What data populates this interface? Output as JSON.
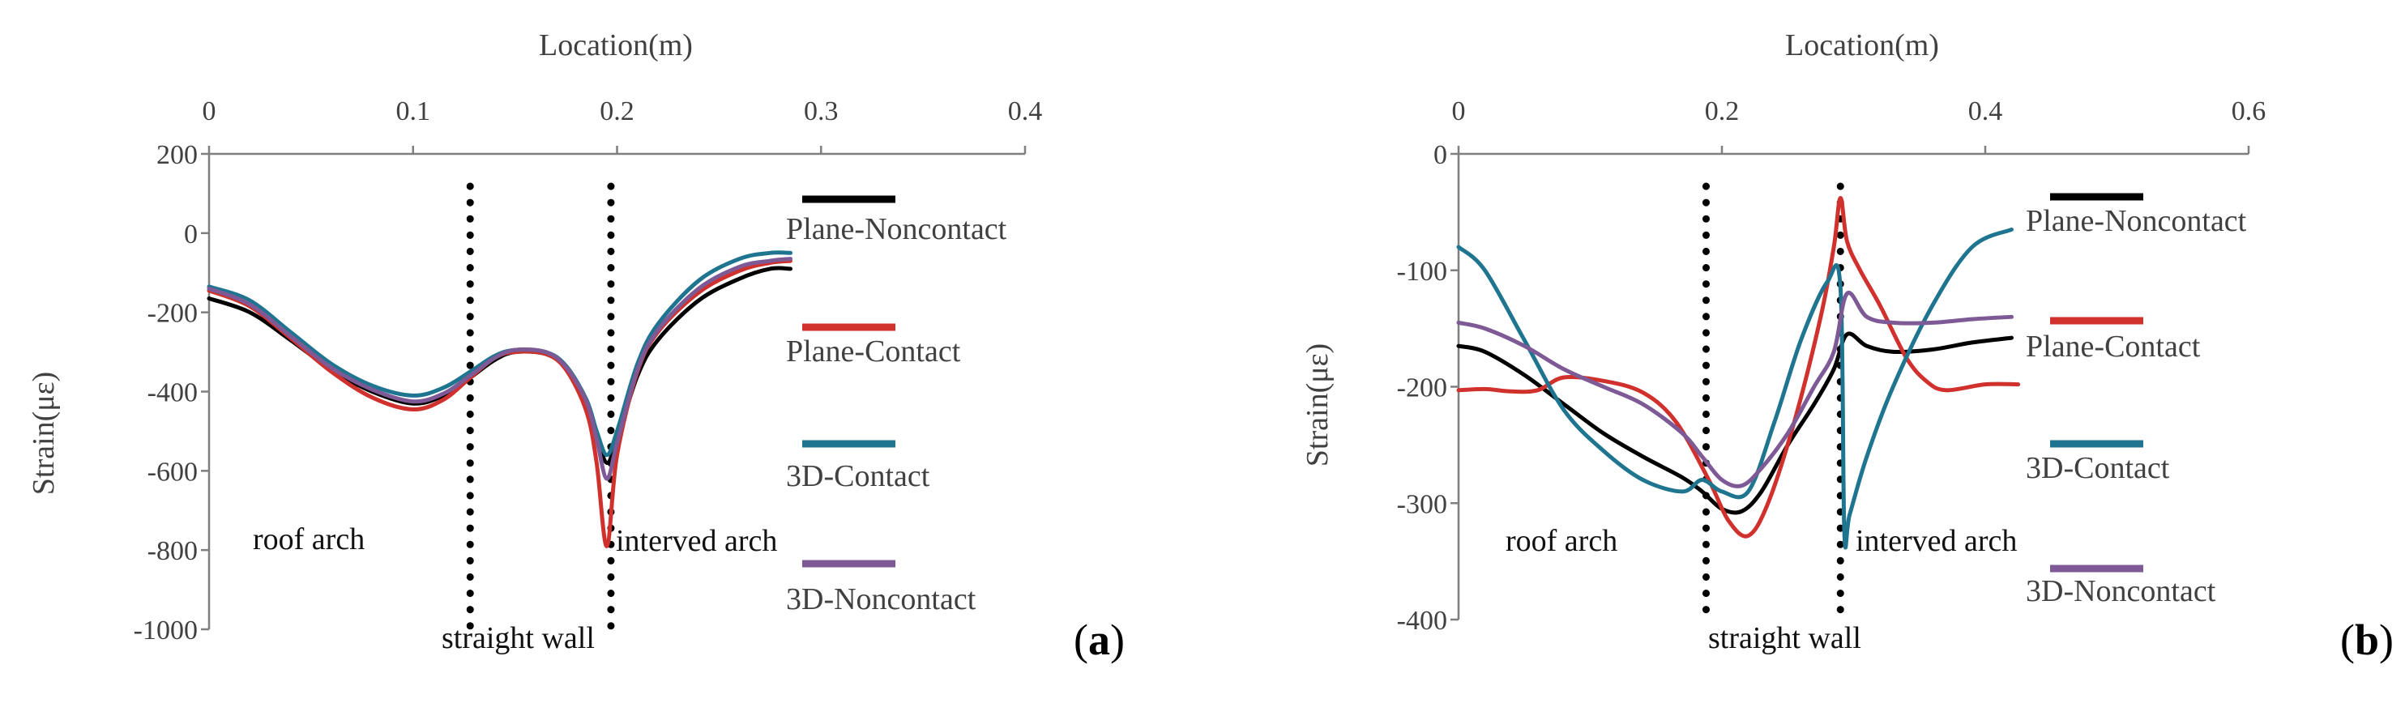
{
  "chart_data": [
    {
      "id": "a",
      "type": "line",
      "panel_label": {
        "open": "(",
        "letter": "a",
        "close": ")"
      },
      "xlabel": "Location(m)",
      "ylabel": "Strain(με)",
      "x_axis_position": "top",
      "xlim": [
        0,
        0.4
      ],
      "ylim": [
        -1000,
        200
      ],
      "xticks": [
        0,
        0.1,
        0.2,
        0.3,
        0.4
      ],
      "xtick_labels": [
        "0",
        "0.1",
        "0.2",
        "0.3",
        "0.4"
      ],
      "yticks": [
        200,
        0,
        -200,
        -400,
        -600,
        -800,
        -1000
      ],
      "ytick_labels": [
        "200",
        "0",
        "-200",
        "-400",
        "-600",
        "-800",
        "-1000"
      ],
      "grid": false,
      "legend_position": "right",
      "dotted_lines": [
        {
          "x": 0.128,
          "label": "straight wall",
          "label_side": "below"
        },
        {
          "x": 0.197,
          "label": "interved arch",
          "label_side": "right"
        }
      ],
      "annotations": [
        {
          "text": "roof arch",
          "x": 0.022,
          "y": -800
        }
      ],
      "series": [
        {
          "name": "Plane-Noncontact",
          "color": "#000000",
          "x": [
            0,
            0.02,
            0.04,
            0.06,
            0.08,
            0.1,
            0.115,
            0.128,
            0.14,
            0.15,
            0.165,
            0.175,
            0.185,
            0.19,
            0.195,
            0.2,
            0.21,
            0.22,
            0.24,
            0.26,
            0.275,
            0.285
          ],
          "y": [
            -165,
            -200,
            -270,
            -345,
            -400,
            -430,
            -410,
            -365,
            -320,
            -300,
            -305,
            -340,
            -430,
            -510,
            -580,
            -520,
            -360,
            -270,
            -170,
            -115,
            -90,
            -90
          ]
        },
        {
          "name": "Plane-Contact",
          "color": "#d0312d",
          "x": [
            0,
            0.02,
            0.04,
            0.06,
            0.08,
            0.1,
            0.115,
            0.128,
            0.14,
            0.15,
            0.165,
            0.175,
            0.185,
            0.19,
            0.195,
            0.2,
            0.21,
            0.22,
            0.24,
            0.26,
            0.275,
            0.285
          ],
          "y": [
            -145,
            -185,
            -265,
            -350,
            -415,
            -445,
            -420,
            -365,
            -315,
            -300,
            -305,
            -345,
            -450,
            -580,
            -790,
            -560,
            -350,
            -250,
            -150,
            -95,
            -75,
            -70
          ]
        },
        {
          "name": "3D-Contact",
          "color": "#1f7590",
          "x": [
            0,
            0.02,
            0.04,
            0.06,
            0.08,
            0.1,
            0.115,
            0.128,
            0.14,
            0.15,
            0.165,
            0.175,
            0.185,
            0.19,
            0.195,
            0.2,
            0.21,
            0.22,
            0.24,
            0.26,
            0.275,
            0.285
          ],
          "y": [
            -135,
            -170,
            -250,
            -330,
            -385,
            -410,
            -390,
            -350,
            -310,
            -295,
            -300,
            -335,
            -420,
            -500,
            -560,
            -500,
            -330,
            -230,
            -120,
            -65,
            -50,
            -50
          ]
        },
        {
          "name": "3D-Noncontact",
          "color": "#7d5a96",
          "x": [
            0,
            0.02,
            0.04,
            0.06,
            0.08,
            0.1,
            0.115,
            0.128,
            0.14,
            0.15,
            0.165,
            0.175,
            0.185,
            0.19,
            0.195,
            0.2,
            0.21,
            0.22,
            0.24,
            0.26,
            0.275,
            0.285
          ],
          "y": [
            -140,
            -180,
            -260,
            -340,
            -395,
            -425,
            -405,
            -360,
            -315,
            -295,
            -300,
            -338,
            -425,
            -520,
            -620,
            -530,
            -345,
            -245,
            -140,
            -85,
            -70,
            -65
          ]
        }
      ]
    },
    {
      "id": "b",
      "type": "line",
      "panel_label": {
        "open": "(",
        "letter": "b",
        "close": ")"
      },
      "xlabel": "Location(m)",
      "ylabel": "Strain(με)",
      "x_axis_position": "top",
      "xlim": [
        0,
        0.6
      ],
      "ylim": [
        -400,
        0
      ],
      "xticks": [
        0,
        0.2,
        0.4,
        0.6
      ],
      "xtick_labels": [
        "0",
        "0.2",
        "0.4",
        "0.6"
      ],
      "yticks": [
        0,
        -100,
        -200,
        -300,
        -400
      ],
      "ytick_labels": [
        "0",
        "-100",
        "-200",
        "-300",
        "-400"
      ],
      "grid": false,
      "legend_position": "right",
      "dotted_lines": [
        {
          "x": 0.188,
          "label": "straight wall",
          "label_side": "below"
        },
        {
          "x": 0.29,
          "label": "interved arch",
          "label_side": "right"
        }
      ],
      "annotations": [
        {
          "text": "roof arch",
          "x": 0.035,
          "y": -330
        }
      ],
      "series": [
        {
          "name": "Plane-Noncontact",
          "color": "#000000",
          "x": [
            0,
            0.02,
            0.05,
            0.08,
            0.11,
            0.14,
            0.17,
            0.185,
            0.2,
            0.215,
            0.23,
            0.25,
            0.27,
            0.285,
            0.295,
            0.31,
            0.33,
            0.36,
            0.39,
            0.42
          ],
          "y": [
            -165,
            -170,
            -190,
            -215,
            -240,
            -260,
            -278,
            -290,
            -305,
            -307,
            -290,
            -250,
            -215,
            -185,
            -155,
            -165,
            -170,
            -168,
            -162,
            -158
          ]
        },
        {
          "name": "Plane-Contact",
          "color": "#d0312d",
          "x": [
            0,
            0.02,
            0.04,
            0.06,
            0.08,
            0.11,
            0.14,
            0.165,
            0.19,
            0.205,
            0.22,
            0.235,
            0.255,
            0.275,
            0.285,
            0.29,
            0.295,
            0.305,
            0.32,
            0.34,
            0.355,
            0.37,
            0.4,
            0.425
          ],
          "y": [
            -203,
            -202,
            -204,
            -203,
            -192,
            -195,
            -205,
            -230,
            -280,
            -315,
            -328,
            -300,
            -230,
            -140,
            -80,
            -38,
            -75,
            -100,
            -130,
            -175,
            -195,
            -203,
            -198,
            -198
          ]
        },
        {
          "name": "3D-Contact",
          "color": "#1f7590",
          "x": [
            0,
            0.02,
            0.05,
            0.08,
            0.11,
            0.14,
            0.17,
            0.185,
            0.2,
            0.22,
            0.24,
            0.26,
            0.28,
            0.29,
            0.293,
            0.297,
            0.31,
            0.33,
            0.36,
            0.39,
            0.42
          ],
          "y": [
            -80,
            -100,
            -160,
            -220,
            -255,
            -280,
            -290,
            -280,
            -290,
            -290,
            -230,
            -160,
            -110,
            -115,
            -325,
            -310,
            -260,
            -200,
            -130,
            -80,
            -65
          ]
        },
        {
          "name": "3D-Noncontact",
          "color": "#7d5a96",
          "x": [
            0,
            0.02,
            0.05,
            0.08,
            0.11,
            0.14,
            0.17,
            0.185,
            0.2,
            0.215,
            0.23,
            0.25,
            0.27,
            0.285,
            0.295,
            0.31,
            0.33,
            0.36,
            0.39,
            0.42
          ],
          "y": [
            -145,
            -150,
            -165,
            -185,
            -200,
            -215,
            -240,
            -260,
            -280,
            -285,
            -270,
            -240,
            -200,
            -170,
            -120,
            -140,
            -145,
            -145,
            -142,
            -140
          ]
        }
      ]
    }
  ]
}
